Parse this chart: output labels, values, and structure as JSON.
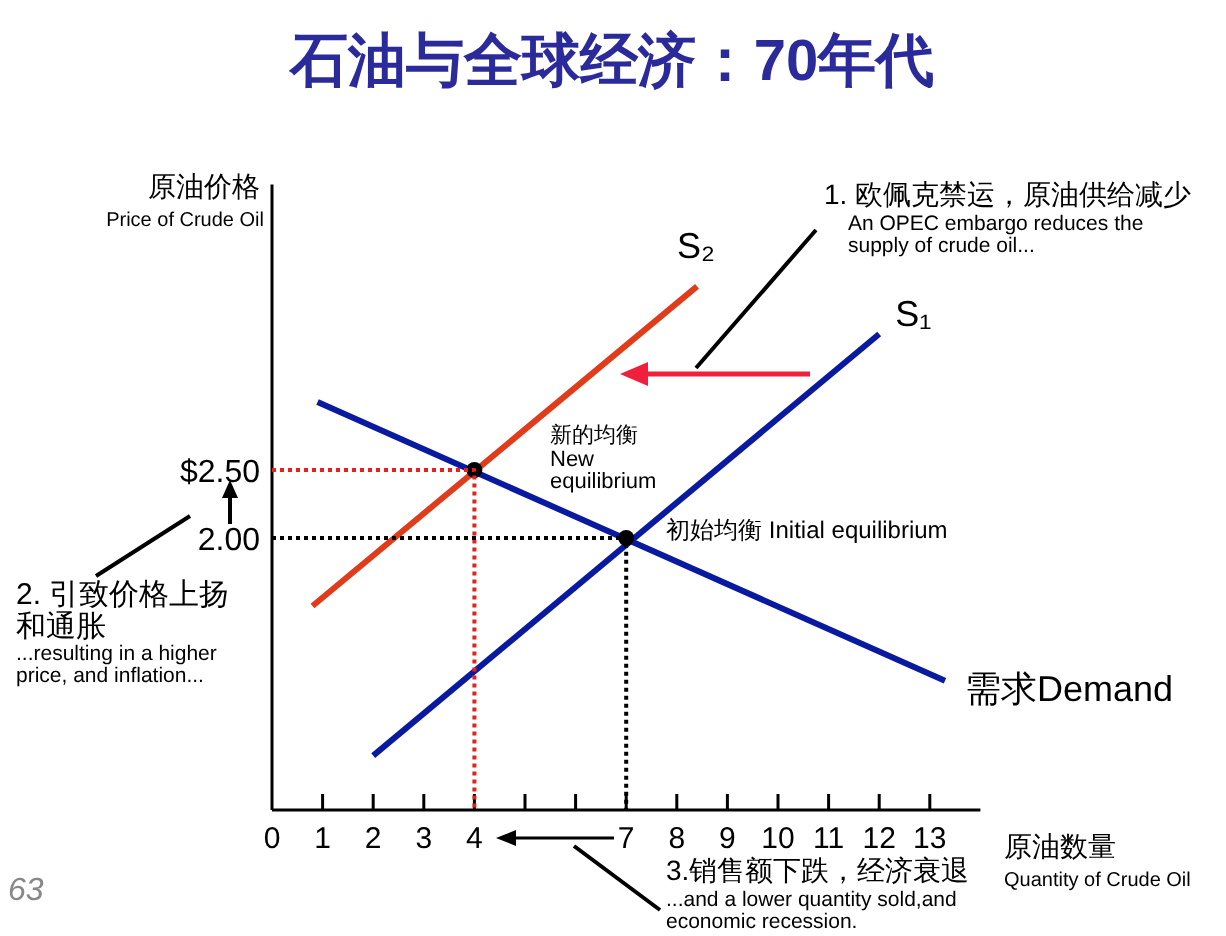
{
  "chart_data": {
    "type": "line",
    "title": "石油与全球经济：70年代",
    "xlabel": "原油数量",
    "ylabel": "原油价格",
    "xlim": [
      0,
      14
    ],
    "ylim": [
      0,
      4.6
    ],
    "xticks": [
      0,
      1,
      2,
      3,
      4,
      {
        "value": 5,
        "label": null
      },
      {
        "value": 6,
        "label": null
      },
      7,
      8,
      9,
      10,
      11,
      12,
      13
    ],
    "yticks": [
      {
        "value": 2,
        "label": "2.00"
      },
      {
        "value": 2.5,
        "label": "$2.50"
      }
    ],
    "grid": false,
    "series": [
      {
        "name": "S₁",
        "color": "#0a1aa0",
        "x": [
          2,
          12
        ],
        "values": [
          0.4,
          3.5
        ]
      },
      {
        "name": "S₂",
        "color": "#e03c1c",
        "x": [
          0.8,
          8.4
        ],
        "values": [
          1.5,
          3.85
        ]
      },
      {
        "name": "需求Demand",
        "color": "#0a1aa0",
        "x": [
          0.9,
          13.3
        ],
        "values": [
          3.0,
          0.95
        ]
      },
      {
        "type": "scatter",
        "color": "#000000",
        "marker": "circle",
        "x": [
          4,
          7
        ],
        "values": [
          2.5,
          2.0
        ]
      },
      {
        "color": "#e8201c",
        "line_style": "dotted",
        "x": [
          0,
          4,
          4
        ],
        "values": [
          2.5,
          2.5,
          0
        ]
      },
      {
        "color": "#000000",
        "line_style": "dotted",
        "x": [
          0,
          7,
          7
        ],
        "values": [
          2.0,
          2.0,
          0
        ]
      }
    ],
    "annotations": [
      "1. 欧佩克禁运，原油供给减少",
      "An OPEC embargo reduces the supply of crude oil...",
      "2. 引致价格上扬和通胀",
      "...resulting in a higher price, and inflation...",
      "3.销售额下跌，经济衰退",
      "...and a lower quantity sold,and economic recession.",
      "新的均衡 New equilibrium",
      {
        "text": "初始均衡 Initial equilibrium",
        "x": 7,
        "y": 2.0
      },
      "Quantity of Crude Oil",
      "Price of Crude Oil",
      "63"
    ]
  }
}
